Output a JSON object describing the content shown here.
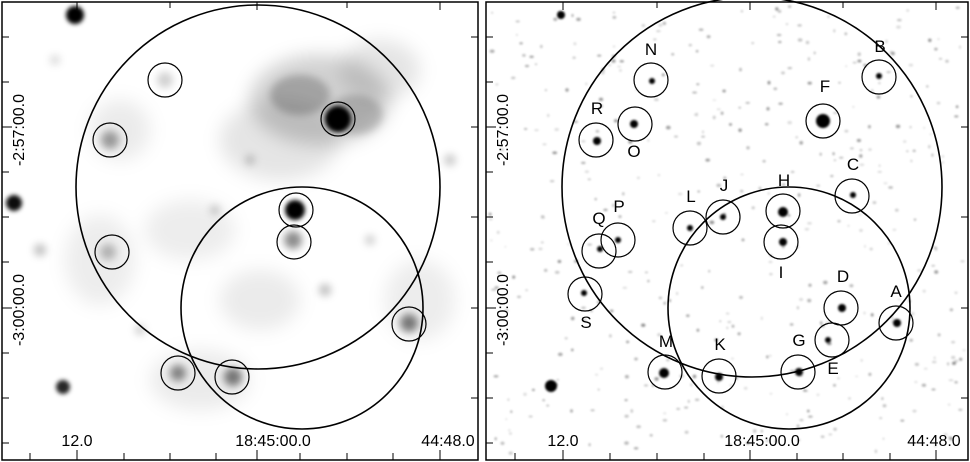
{
  "colors": {
    "ink": "#000000",
    "background": "#ffffff"
  },
  "axes": {
    "dec_labels": [
      "-2:57:00.0",
      "-3:00:00.0"
    ],
    "ra_labels": [
      "12.0",
      "18:45:00.0",
      "44:48.0"
    ]
  },
  "source_labels": [
    "A",
    "B",
    "C",
    "D",
    "E",
    "F",
    "G",
    "H",
    "I",
    "J",
    "K",
    "L",
    "M",
    "N",
    "O",
    "P",
    "Q",
    "R",
    "S"
  ],
  "panels": [
    {
      "name": "left-panel",
      "image": "greyscale smoothed emission map"
    },
    {
      "name": "right-panel",
      "image": "greyscale point-source map"
    }
  ]
}
